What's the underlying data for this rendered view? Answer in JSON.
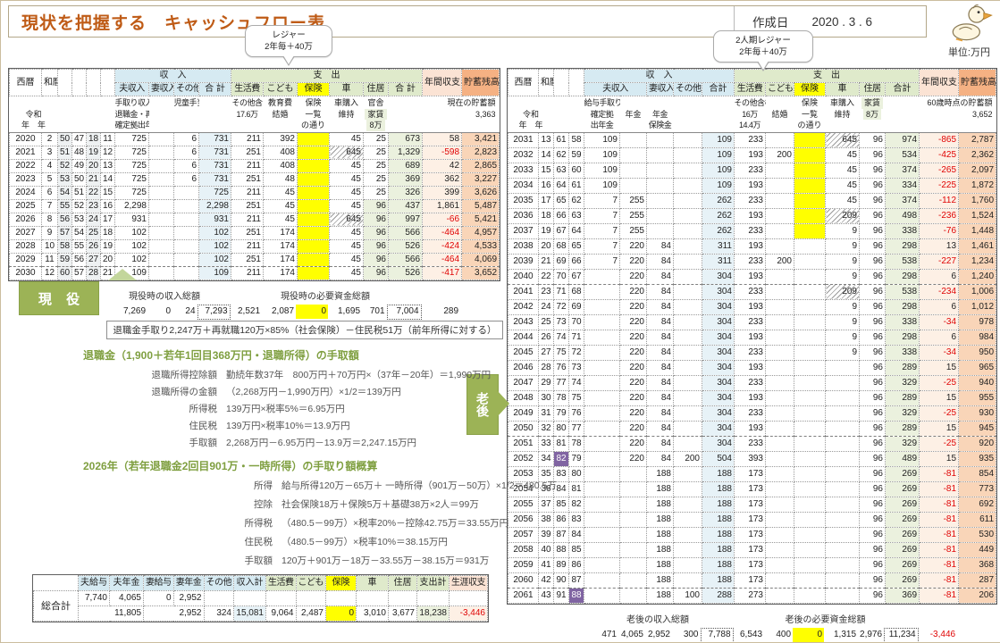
{
  "meta": {
    "title": "現状を把握する　キャッシュフロー表",
    "created_label": "作成日",
    "created_date": "2020 . 3 . 6",
    "unit": "単位:万円"
  },
  "callouts": {
    "left": {
      "line1": "レジャー",
      "line2": "2年毎＋40万"
    },
    "right": {
      "line1": "2人期レジャー",
      "line2": "2年毎＋40万"
    }
  },
  "badges": {
    "working": "現 役",
    "retire": "老後"
  },
  "left_table": {
    "headers": {
      "seireki": "西暦",
      "wareki": "和暦",
      "income_group": "収　入",
      "expense_group": "支　出",
      "husband": "夫収入",
      "wife": "妻収入",
      "other": "その他",
      "total_in": "合 計",
      "living": "生活費",
      "kids": "こども",
      "insurance": "保険",
      "car": "車",
      "housing": "住居",
      "total_out": "合 計",
      "annual": "年間収支",
      "balance": "貯蓄残高"
    },
    "subheads": {
      "era1": "令和",
      "era2": "年　年",
      "h1": "手取り収入",
      "h2": "退職金・再就職",
      "h3": "確定拠出年金",
      "o1": "児童手当",
      "l1": "その他含",
      "l2": "17.6万",
      "k1": "教育費",
      "k2": "結婚",
      "i1": "保険",
      "i2": "一覧",
      "i3": "の通り",
      "c1": "車購入",
      "c2": "維持",
      "ho1": "官舎",
      "ho2": "家賃",
      "ho3": "8万",
      "sv_label": "現在の貯蓄額",
      "sv_value": "3,363"
    },
    "rows": [
      [
        "2020",
        "2",
        "50",
        "47",
        "18",
        "11",
        "725",
        "",
        "6",
        "731",
        "211",
        "392",
        "",
        "45",
        "25",
        "673",
        "58",
        "3,421"
      ],
      [
        "2021",
        "3",
        "51",
        "48",
        "19",
        "12",
        "725",
        "",
        "6",
        "731",
        "251",
        "408",
        "",
        "645",
        "25",
        "1,329",
        "-598",
        "2,823"
      ],
      [
        "2022",
        "4",
        "52",
        "49",
        "20",
        "13",
        "725",
        "",
        "6",
        "731",
        "211",
        "408",
        "",
        "45",
        "25",
        "689",
        "42",
        "2,865"
      ],
      [
        "2023",
        "5",
        "53",
        "50",
        "21",
        "14",
        "725",
        "",
        "6",
        "731",
        "251",
        "48",
        "",
        "45",
        "25",
        "369",
        "362",
        "3,227"
      ],
      [
        "2024",
        "6",
        "54",
        "51",
        "22",
        "15",
        "725",
        "",
        "",
        "725",
        "211",
        "45",
        "",
        "45",
        "25",
        "326",
        "399",
        "3,626"
      ],
      [
        "2025",
        "7",
        "55",
        "52",
        "23",
        "16",
        "2,298",
        "",
        "",
        "2,298",
        "251",
        "45",
        "",
        "45",
        "96",
        "437",
        "1,861",
        "5,487"
      ],
      [
        "2026",
        "8",
        "56",
        "53",
        "24",
        "17",
        "931",
        "",
        "",
        "931",
        "211",
        "45",
        "",
        "645",
        "96",
        "997",
        "-66",
        "5,421"
      ],
      [
        "2027",
        "9",
        "57",
        "54",
        "25",
        "18",
        "102",
        "",
        "",
        "102",
        "251",
        "174",
        "",
        "45",
        "96",
        "566",
        "-464",
        "4,957"
      ],
      [
        "2028",
        "10",
        "58",
        "55",
        "26",
        "19",
        "102",
        "",
        "",
        "102",
        "211",
        "174",
        "",
        "45",
        "96",
        "526",
        "-424",
        "4,533"
      ],
      [
        "2029",
        "11",
        "59",
        "56",
        "27",
        "20",
        "102",
        "",
        "",
        "102",
        "251",
        "174",
        "",
        "45",
        "96",
        "566",
        "-464",
        "4,069"
      ],
      [
        "2030",
        "12",
        "60",
        "57",
        "28",
        "21",
        "109",
        "",
        "",
        "109",
        "211",
        "174",
        "",
        "45",
        "96",
        "526",
        "-417",
        "3,652"
      ]
    ],
    "summary": {
      "income_label": "現役時の収入総額",
      "expense_label": "現役時の必要資金総額",
      "values": [
        "7,269",
        "0",
        "24",
        "7,293",
        "2,521",
        "2,087",
        "0",
        "1,695",
        "701",
        "7,004",
        "289"
      ]
    }
  },
  "right_table": {
    "headers": {
      "seireki": "西暦",
      "wareki": "和暦",
      "income_group": "収　入",
      "expense_group": "支　出",
      "husband": "夫収入",
      "wife": "妻収入",
      "other": "その他",
      "total_in": "合計",
      "living": "生活費",
      "kids": "こども",
      "insurance": "保険",
      "car": "車",
      "housing": "住居",
      "total_out": "合計",
      "annual": "年間収支",
      "balance": "貯蓄残高"
    },
    "subheads": {
      "era1": "令和",
      "era2": "年　年",
      "g1": "給与手取り",
      "g2": "確定拠",
      "g3": "出年金",
      "p1": "年金",
      "q1": "年金",
      "q2": "保険金",
      "l1": "その他含む",
      "l2": "16万",
      "l3": "14.4万",
      "k1": "結婚",
      "i1": "保険",
      "i2": "一覧",
      "i3": "の通り",
      "c1": "車購入",
      "c2": "維持",
      "ho1": "家賃",
      "ho2": "8万",
      "sv_label": "60歳時点の貯蓄額",
      "sv_value": "3,652"
    },
    "rows": [
      [
        "2031",
        "13",
        "61",
        "58",
        "109",
        "",
        "",
        "",
        "109",
        "233",
        "",
        "",
        "645",
        "96",
        "974",
        "-865",
        "2,787"
      ],
      [
        "2032",
        "14",
        "62",
        "59",
        "109",
        "",
        "",
        "",
        "109",
        "193",
        "200",
        "",
        "45",
        "96",
        "534",
        "-425",
        "2,362"
      ],
      [
        "2033",
        "15",
        "63",
        "60",
        "109",
        "",
        "",
        "",
        "109",
        "233",
        "",
        "",
        "45",
        "96",
        "374",
        "-265",
        "2,097"
      ],
      [
        "2034",
        "16",
        "64",
        "61",
        "109",
        "",
        "",
        "",
        "109",
        "193",
        "",
        "",
        "45",
        "96",
        "334",
        "-225",
        "1,872"
      ],
      [
        "2035",
        "17",
        "65",
        "62",
        "7",
        "255",
        "",
        "",
        "262",
        "233",
        "",
        "",
        "45",
        "96",
        "374",
        "-112",
        "1,760"
      ],
      [
        "2036",
        "18",
        "66",
        "63",
        "7",
        "255",
        "",
        "",
        "262",
        "193",
        "",
        "",
        "209",
        "96",
        "498",
        "-236",
        "1,524"
      ],
      [
        "2037",
        "19",
        "67",
        "64",
        "7",
        "255",
        "",
        "",
        "262",
        "233",
        "",
        "",
        "9",
        "96",
        "338",
        "-76",
        "1,448"
      ],
      [
        "2038",
        "20",
        "68",
        "65",
        "7",
        "220",
        "84",
        "",
        "311",
        "193",
        "",
        "",
        "9",
        "96",
        "298",
        "13",
        "1,461"
      ],
      [
        "2039",
        "21",
        "69",
        "66",
        "7",
        "220",
        "84",
        "",
        "311",
        "233",
        "200",
        "",
        "9",
        "96",
        "538",
        "-227",
        "1,234"
      ],
      [
        "2040",
        "22",
        "70",
        "67",
        "",
        "220",
        "84",
        "",
        "304",
        "193",
        "",
        "",
        "9",
        "96",
        "298",
        "6",
        "1,240"
      ],
      [
        "2041",
        "23",
        "71",
        "68",
        "",
        "220",
        "84",
        "",
        "304",
        "233",
        "",
        "",
        "209",
        "96",
        "538",
        "-234",
        "1,006"
      ],
      [
        "2042",
        "24",
        "72",
        "69",
        "",
        "220",
        "84",
        "",
        "304",
        "193",
        "",
        "",
        "9",
        "96",
        "298",
        "6",
        "1,012"
      ],
      [
        "2043",
        "25",
        "73",
        "70",
        "",
        "220",
        "84",
        "",
        "304",
        "233",
        "",
        "",
        "9",
        "96",
        "338",
        "-34",
        "978"
      ],
      [
        "2044",
        "26",
        "74",
        "71",
        "",
        "220",
        "84",
        "",
        "304",
        "193",
        "",
        "",
        "9",
        "96",
        "298",
        "6",
        "984"
      ],
      [
        "2045",
        "27",
        "75",
        "72",
        "",
        "220",
        "84",
        "",
        "304",
        "233",
        "",
        "",
        "9",
        "96",
        "338",
        "-34",
        "950"
      ],
      [
        "2046",
        "28",
        "76",
        "73",
        "",
        "220",
        "84",
        "",
        "304",
        "193",
        "",
        "",
        "",
        "96",
        "289",
        "15",
        "965"
      ],
      [
        "2047",
        "29",
        "77",
        "74",
        "",
        "220",
        "84",
        "",
        "304",
        "233",
        "",
        "",
        "",
        "96",
        "329",
        "-25",
        "940"
      ],
      [
        "2048",
        "30",
        "78",
        "75",
        "",
        "220",
        "84",
        "",
        "304",
        "193",
        "",
        "",
        "",
        "96",
        "289",
        "15",
        "955"
      ],
      [
        "2049",
        "31",
        "79",
        "76",
        "",
        "220",
        "84",
        "",
        "304",
        "233",
        "",
        "",
        "",
        "96",
        "329",
        "-25",
        "930"
      ],
      [
        "2050",
        "32",
        "80",
        "77",
        "",
        "220",
        "84",
        "",
        "304",
        "193",
        "",
        "",
        "",
        "96",
        "289",
        "15",
        "945"
      ],
      [
        "2051",
        "33",
        "81",
        "78",
        "",
        "220",
        "84",
        "",
        "304",
        "233",
        "",
        "",
        "",
        "96",
        "329",
        "-25",
        "920"
      ],
      [
        "2052",
        "34",
        "82",
        "79",
        "",
        "220",
        "84",
        "200",
        "504",
        "393",
        "",
        "",
        "",
        "96",
        "489",
        "15",
        "935"
      ],
      [
        "2053",
        "35",
        "83",
        "80",
        "",
        "",
        "188",
        "",
        "188",
        "173",
        "",
        "",
        "",
        "96",
        "269",
        "-81",
        "854"
      ],
      [
        "2054",
        "36",
        "84",
        "81",
        "",
        "",
        "188",
        "",
        "188",
        "173",
        "",
        "",
        "",
        "96",
        "269",
        "-81",
        "773"
      ],
      [
        "2055",
        "37",
        "85",
        "82",
        "",
        "",
        "188",
        "",
        "188",
        "173",
        "",
        "",
        "",
        "96",
        "269",
        "-81",
        "692"
      ],
      [
        "2056",
        "38",
        "86",
        "83",
        "",
        "",
        "188",
        "",
        "188",
        "173",
        "",
        "",
        "",
        "96",
        "269",
        "-81",
        "611"
      ],
      [
        "2057",
        "39",
        "87",
        "84",
        "",
        "",
        "188",
        "",
        "188",
        "173",
        "",
        "",
        "",
        "96",
        "269",
        "-81",
        "530"
      ],
      [
        "2058",
        "40",
        "88",
        "85",
        "",
        "",
        "188",
        "",
        "188",
        "173",
        "",
        "",
        "",
        "96",
        "269",
        "-81",
        "449"
      ],
      [
        "2059",
        "41",
        "89",
        "86",
        "",
        "",
        "188",
        "",
        "188",
        "173",
        "",
        "",
        "",
        "96",
        "269",
        "-81",
        "368"
      ],
      [
        "2060",
        "42",
        "90",
        "87",
        "",
        "",
        "188",
        "",
        "188",
        "173",
        "",
        "",
        "",
        "96",
        "269",
        "-81",
        "287"
      ],
      [
        "2061",
        "43",
        "91",
        "88",
        "",
        "",
        "188",
        "100",
        "288",
        "273",
        "",
        "",
        "",
        "96",
        "369",
        "-81",
        "206"
      ]
    ],
    "summary": {
      "income_label": "老後の収入総額",
      "expense_label": "老後の必要資金総額",
      "values": [
        "471",
        "4,065",
        "2,952",
        "300",
        "7,788",
        "6,543",
        "400",
        "0",
        "1,315",
        "2,976",
        "11,234",
        "-3,446"
      ]
    }
  },
  "note": "退職金手取り2,247万＋再就職120万×85%（社会保険）－住民税51万（前年所得に対する）",
  "calc1": {
    "title": "退職金（1,900＋若年1回目368万円・退職所得）の手取額",
    "rows": [
      [
        "退職所得控除額",
        "勤続年数37年　800万円＋70万円×（37年－20年）＝1,990万円"
      ],
      [
        "退職所得の金額",
        "（2,268万円－1,990万円）×1/2＝139万円"
      ],
      [
        "所得税",
        "139万円×税率5%＝6.95万円"
      ],
      [
        "住民税",
        "139万円×税率10%＝13.9万円"
      ],
      [
        "手取額",
        "2,268万円－6.95万円－13.9万＝2,247.15万円"
      ]
    ]
  },
  "calc2": {
    "title": "2026年（若年退職金2回目901万・一時所得）の手取り額概算",
    "rows": [
      [
        "所得",
        "給与所得120万－65万＋ 一時所得（901万－50万）×1/2＝480.5万"
      ],
      [
        "控除",
        "社会保険18万＋保険5万＋基礎38万×2人＝99万"
      ],
      [
        "所得税",
        "（480.5－99万）×税率20%－控除42.75万＝33.55万円"
      ],
      [
        "住民税",
        "（480.5－99万）×税率10%＝38.15万円"
      ],
      [
        "手取額",
        "120万＋901万－18万－33.55万－38.15万＝931万"
      ]
    ]
  },
  "grand_total": {
    "label": "総合計",
    "headers": [
      "夫給与",
      "夫年金",
      "妻給与",
      "妻年金",
      "その他",
      "収入計",
      "生活費",
      "こども",
      "保険",
      "車",
      "住居",
      "支出計",
      "生涯収支"
    ],
    "row1": [
      "7,740",
      "4,065",
      "0",
      "2,952"
    ],
    "row2": [
      "11,805",
      "2,952",
      "324",
      "15,081",
      "9,064",
      "2,487",
      "0",
      "3,010",
      "3,677",
      "18,238",
      "-3,446"
    ]
  },
  "colors": {
    "title": "#bf5b16",
    "income_header": "#d6eaf2",
    "expense_header": "#dfeacb",
    "insurance": "#ffff00",
    "annual_header": "#fbe3d4",
    "balance_header": "#f5b183",
    "negative": "#e00404",
    "badge_green": "#9cb356",
    "highlight_purple": "#8064a2"
  }
}
